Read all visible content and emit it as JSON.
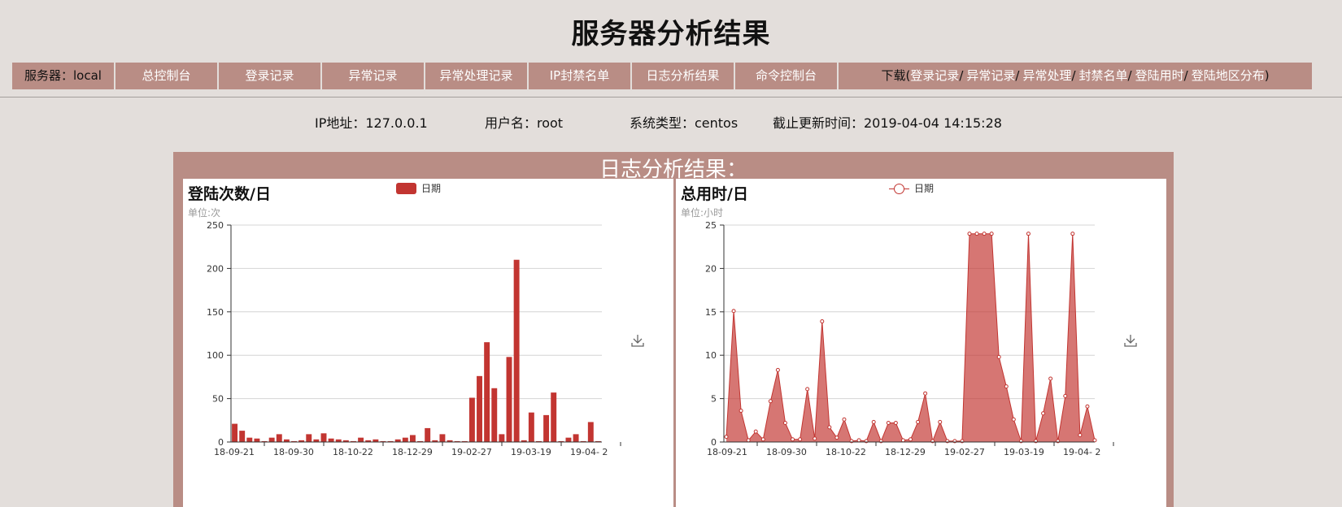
{
  "page": {
    "title": "服务器分析结果"
  },
  "nav": {
    "items": [
      {
        "label": "服务器：local",
        "width": 130
      },
      {
        "label": "总控制台",
        "width": 134
      },
      {
        "label": "登录记录",
        "width": 134
      },
      {
        "label": "异常记录",
        "width": 134
      },
      {
        "label": "异常处理记录",
        "width": 134
      },
      {
        "label": "IP封禁名单",
        "width": 134
      },
      {
        "label": "日志分析结果",
        "width": 134
      },
      {
        "label": "命令控制台",
        "width": 134
      }
    ],
    "download": {
      "prefix": "下载(",
      "links": [
        "登录记录",
        "异常记录",
        "异常处理",
        "封禁名单",
        "登陆用时",
        "登陆地区分布"
      ],
      "separator": "/",
      "suffix": ")"
    }
  },
  "info": {
    "ip": "IP地址：127.0.0.1",
    "user": "用户名：root",
    "os": "系统类型：centos",
    "updated": "截止更新时间：2019-04-04 14:15:28"
  },
  "panel": {
    "title": "日志分析结果："
  },
  "colors": {
    "accent": "#c23531",
    "panel": "#b98d85",
    "background": "#e3dedb"
  },
  "icons": {
    "download": "download-icon"
  },
  "chart_data": [
    {
      "type": "bar",
      "title": "登陆次数/日",
      "unit_label": "单位:次",
      "legend": [
        "日期"
      ],
      "ylim": [
        0,
        250
      ],
      "yticks": [
        0,
        50,
        100,
        150,
        200,
        250
      ],
      "xtick_labels": [
        "18-09-21",
        "18-09-30",
        "18-10-22",
        "18-12-29",
        "19-02-27",
        "19-03-19",
        "19-04- 2"
      ],
      "series": [
        {
          "name": "日期",
          "values": [
            21,
            13,
            5,
            4,
            1,
            5,
            9,
            3,
            1,
            2,
            9,
            3,
            10,
            4,
            3,
            2,
            1,
            5,
            2,
            3,
            1,
            1,
            3,
            5,
            8,
            1,
            16,
            2,
            9,
            2,
            1,
            1,
            51,
            76,
            115,
            62,
            9,
            98,
            210,
            2,
            34,
            1,
            31,
            57,
            1,
            5,
            9,
            1,
            23,
            1
          ]
        }
      ]
    },
    {
      "type": "area",
      "title": "总用时/日",
      "unit_label": "单位:小时",
      "legend": [
        "日期"
      ],
      "ylim": [
        0,
        25
      ],
      "yticks": [
        0,
        5,
        10,
        15,
        20,
        25
      ],
      "xtick_labels": [
        "18-09-21",
        "18-09-30",
        "18-10-22",
        "18-12-29",
        "19-02-27",
        "19-03-19",
        "19-04- 2"
      ],
      "series": [
        {
          "name": "日期",
          "values": [
            0.6,
            15.1,
            3.6,
            0.2,
            1.2,
            0.3,
            4.7,
            8.3,
            2.2,
            0.3,
            0.3,
            6.1,
            0.4,
            13.9,
            1.7,
            0.5,
            2.6,
            0.1,
            0.2,
            0.1,
            2.3,
            0.1,
            2.2,
            2.2,
            0.2,
            0.3,
            2.3,
            5.6,
            0.1,
            2.3,
            0.1,
            0.1,
            0.1,
            24,
            24,
            24,
            24,
            9.8,
            6.4,
            2.6,
            0.1,
            24,
            0.1,
            3.3,
            7.3,
            0.1,
            5.3,
            24,
            0.8,
            4.1,
            0.2
          ]
        }
      ]
    }
  ]
}
